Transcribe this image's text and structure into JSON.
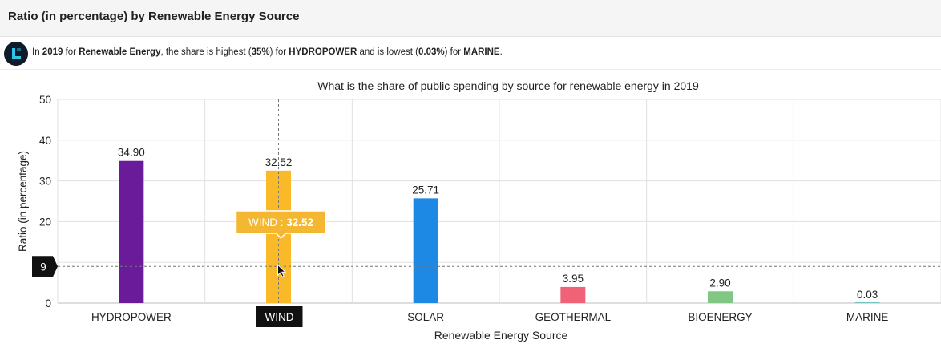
{
  "header": {
    "title": "Ratio (in percentage) by Renewable Energy Source"
  },
  "insight": {
    "p1": "In ",
    "year": "2019",
    "p2": " for ",
    "category": "Renewable Energy",
    "p3": ", the share is highest (",
    "high_value": "35%",
    "p4": ") for ",
    "high_source": "HYDROPOWER",
    "p5": " and is lowest (",
    "low_value": "0.03%",
    "p6": ") for ",
    "low_source": "MARINE",
    "p7": "."
  },
  "chart_data": {
    "type": "bar",
    "title": "What is the share of public spending by source for renewable energy in 2019",
    "xlabel": "Renewable Energy Source",
    "ylabel": "Ratio (in percentage)",
    "ylim": [
      0,
      50
    ],
    "yticks": [
      "0",
      "10",
      "20",
      "30",
      "40",
      "50"
    ],
    "categories": [
      "HYDROPOWER",
      "WIND",
      "SOLAR",
      "GEOTHERMAL",
      "BIOENERGY",
      "MARINE"
    ],
    "values": [
      34.9,
      32.52,
      25.71,
      3.95,
      2.9,
      0.03
    ],
    "value_labels": [
      "34.90",
      "32.52",
      "25.71",
      "3.95",
      "2.90",
      "0.03"
    ],
    "colors": [
      "#6a1b9a",
      "#f9b929",
      "#1e88e5",
      "#f06277",
      "#81c784",
      "#4db6ac"
    ],
    "grid": true,
    "hover": {
      "category": "WIND",
      "tooltip_label": "WIND : ",
      "tooltip_value": "32.52",
      "cursor_y_label": "9",
      "cursor_y_value": 9
    }
  }
}
